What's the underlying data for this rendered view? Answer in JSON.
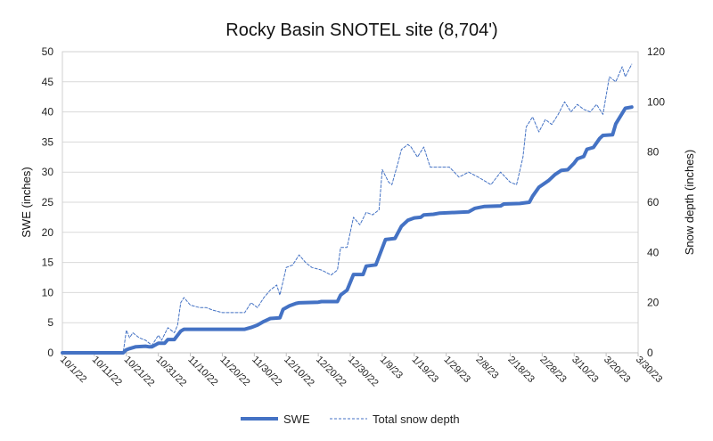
{
  "chart_data": {
    "type": "line",
    "title": "Rocky Basin SNOTEL site (8,704')",
    "ylabel_left": "SWE (inches)",
    "ylabel_right": "Snow depth (inches)",
    "ylim_left": [
      0,
      50
    ],
    "yticks_left": [
      "0",
      "5",
      "10",
      "15",
      "20",
      "25",
      "30",
      "35",
      "40",
      "45",
      "50"
    ],
    "ylim_right": [
      0,
      120
    ],
    "yticks_right": [
      "0",
      "20",
      "40",
      "60",
      "80",
      "100",
      "120"
    ],
    "x_range": [
      "2022-10-01",
      "2023-03-30"
    ],
    "x_ticks": [
      {
        "date": "2022-10-01",
        "label": "10/1/22"
      },
      {
        "date": "2022-10-11",
        "label": "10/11/22"
      },
      {
        "date": "2022-10-21",
        "label": "10/21/22"
      },
      {
        "date": "2022-10-31",
        "label": "10/31/22"
      },
      {
        "date": "2022-11-10",
        "label": "11/10/22"
      },
      {
        "date": "2022-11-20",
        "label": "11/20/22"
      },
      {
        "date": "2022-11-30",
        "label": "11/30/22"
      },
      {
        "date": "2022-12-10",
        "label": "12/10/22"
      },
      {
        "date": "2022-12-20",
        "label": "12/20/22"
      },
      {
        "date": "2022-12-30",
        "label": "12/30/22"
      },
      {
        "date": "2023-01-09",
        "label": "1/9/23"
      },
      {
        "date": "2023-01-19",
        "label": "1/19/23"
      },
      {
        "date": "2023-01-29",
        "label": "1/29/23"
      },
      {
        "date": "2023-02-08",
        "label": "2/8/23"
      },
      {
        "date": "2023-02-18",
        "label": "2/18/23"
      },
      {
        "date": "2023-02-28",
        "label": "2/28/23"
      },
      {
        "date": "2023-03-10",
        "label": "3/10/23"
      },
      {
        "date": "2023-03-20",
        "label": "3/20/23"
      },
      {
        "date": "2023-03-30",
        "label": "3/30/23"
      }
    ],
    "grid": "horizontal",
    "legend_position": "bottom",
    "series": [
      {
        "name": "SWE",
        "axis": "left",
        "color": "#4472C4",
        "style": "solid",
        "points": [
          [
            "2022-10-01",
            0
          ],
          [
            "2022-10-20",
            0
          ],
          [
            "2022-10-21",
            0.5
          ],
          [
            "2022-10-22",
            0.7
          ],
          [
            "2022-10-24",
            1.0
          ],
          [
            "2022-10-27",
            1.1
          ],
          [
            "2022-10-28",
            1.0
          ],
          [
            "2022-10-29",
            1.0
          ],
          [
            "2022-10-31",
            1.6
          ],
          [
            "2022-11-02",
            1.6
          ],
          [
            "2022-11-03",
            2.2
          ],
          [
            "2022-11-05",
            2.2
          ],
          [
            "2022-11-07",
            3.6
          ],
          [
            "2022-11-08",
            3.9
          ],
          [
            "2022-11-27",
            3.9
          ],
          [
            "2022-11-29",
            4.2
          ],
          [
            "2022-12-01",
            4.6
          ],
          [
            "2022-12-03",
            5.2
          ],
          [
            "2022-12-05",
            5.7
          ],
          [
            "2022-12-08",
            5.8
          ],
          [
            "2022-12-09",
            7.2
          ],
          [
            "2022-12-11",
            7.8
          ],
          [
            "2022-12-13",
            8.2
          ],
          [
            "2022-12-14",
            8.3
          ],
          [
            "2022-12-20",
            8.4
          ],
          [
            "2022-12-21",
            8.5
          ],
          [
            "2022-12-26",
            8.5
          ],
          [
            "2022-12-27",
            9.6
          ],
          [
            "2022-12-29",
            10.4
          ],
          [
            "2022-12-31",
            13.0
          ],
          [
            "2023-01-03",
            13.0
          ],
          [
            "2023-01-04",
            14.4
          ],
          [
            "2023-01-07",
            14.6
          ],
          [
            "2023-01-10",
            18.8
          ],
          [
            "2023-01-13",
            19.0
          ],
          [
            "2023-01-15",
            21.0
          ],
          [
            "2023-01-17",
            22.0
          ],
          [
            "2023-01-19",
            22.4
          ],
          [
            "2023-01-21",
            22.5
          ],
          [
            "2023-01-22",
            22.9
          ],
          [
            "2023-01-25",
            23.0
          ],
          [
            "2023-01-27",
            23.2
          ],
          [
            "2023-02-05",
            23.4
          ],
          [
            "2023-02-07",
            24.0
          ],
          [
            "2023-02-10",
            24.3
          ],
          [
            "2023-02-15",
            24.4
          ],
          [
            "2023-02-16",
            24.7
          ],
          [
            "2023-02-21",
            24.8
          ],
          [
            "2023-02-24",
            25.0
          ],
          [
            "2023-02-25",
            26.0
          ],
          [
            "2023-02-27",
            27.5
          ],
          [
            "2023-03-02",
            28.6
          ],
          [
            "2023-03-04",
            29.6
          ],
          [
            "2023-03-06",
            30.3
          ],
          [
            "2023-03-08",
            30.4
          ],
          [
            "2023-03-10",
            31.5
          ],
          [
            "2023-03-11",
            32.2
          ],
          [
            "2023-03-13",
            32.6
          ],
          [
            "2023-03-14",
            33.8
          ],
          [
            "2023-03-16",
            34.1
          ],
          [
            "2023-03-18",
            35.6
          ],
          [
            "2023-03-19",
            36.1
          ],
          [
            "2023-03-22",
            36.2
          ],
          [
            "2023-03-23",
            38.0
          ],
          [
            "2023-03-26",
            40.6
          ],
          [
            "2023-03-28",
            40.8
          ]
        ]
      },
      {
        "name": "Total snow depth",
        "axis": "right",
        "color": "#4472C4",
        "style": "dashed",
        "points": [
          [
            "2022-10-01",
            0
          ],
          [
            "2022-10-20",
            0
          ],
          [
            "2022-10-21",
            9
          ],
          [
            "2022-10-22",
            6
          ],
          [
            "2022-10-23",
            8
          ],
          [
            "2022-10-25",
            6
          ],
          [
            "2022-10-27",
            5
          ],
          [
            "2022-10-29",
            3
          ],
          [
            "2022-10-31",
            7
          ],
          [
            "2022-11-01",
            5
          ],
          [
            "2022-11-03",
            10
          ],
          [
            "2022-11-05",
            8
          ],
          [
            "2022-11-06",
            11
          ],
          [
            "2022-11-07",
            20
          ],
          [
            "2022-11-08",
            22
          ],
          [
            "2022-11-10",
            19
          ],
          [
            "2022-11-13",
            18
          ],
          [
            "2022-11-15",
            18
          ],
          [
            "2022-11-17",
            17
          ],
          [
            "2022-11-20",
            16
          ],
          [
            "2022-11-27",
            16
          ],
          [
            "2022-11-29",
            20
          ],
          [
            "2022-12-01",
            18
          ],
          [
            "2022-12-03",
            22
          ],
          [
            "2022-12-05",
            25
          ],
          [
            "2022-12-07",
            27
          ],
          [
            "2022-12-08",
            23
          ],
          [
            "2022-12-10",
            34
          ],
          [
            "2022-12-12",
            35
          ],
          [
            "2022-12-14",
            39
          ],
          [
            "2022-12-16",
            36
          ],
          [
            "2022-12-18",
            34
          ],
          [
            "2022-12-21",
            33
          ],
          [
            "2022-12-24",
            31
          ],
          [
            "2022-12-26",
            33
          ],
          [
            "2022-12-27",
            42
          ],
          [
            "2022-12-29",
            42
          ],
          [
            "2022-12-31",
            54
          ],
          [
            "2023-01-02",
            51
          ],
          [
            "2023-01-04",
            56
          ],
          [
            "2023-01-06",
            55
          ],
          [
            "2023-01-08",
            57
          ],
          [
            "2023-01-09",
            73
          ],
          [
            "2023-01-11",
            68
          ],
          [
            "2023-01-12",
            67
          ],
          [
            "2023-01-14",
            76
          ],
          [
            "2023-01-15",
            81
          ],
          [
            "2023-01-17",
            83
          ],
          [
            "2023-01-18",
            82
          ],
          [
            "2023-01-20",
            78
          ],
          [
            "2023-01-22",
            82
          ],
          [
            "2023-01-24",
            74
          ],
          [
            "2023-01-30",
            74
          ],
          [
            "2023-02-02",
            70
          ],
          [
            "2023-02-05",
            72
          ],
          [
            "2023-02-08",
            70
          ],
          [
            "2023-02-12",
            67
          ],
          [
            "2023-02-15",
            72
          ],
          [
            "2023-02-18",
            68
          ],
          [
            "2023-02-20",
            67
          ],
          [
            "2023-02-22",
            78
          ],
          [
            "2023-02-23",
            90
          ],
          [
            "2023-02-25",
            94
          ],
          [
            "2023-02-27",
            88
          ],
          [
            "2023-03-01",
            93
          ],
          [
            "2023-03-03",
            91
          ],
          [
            "2023-03-05",
            95
          ],
          [
            "2023-03-07",
            100
          ],
          [
            "2023-03-09",
            96
          ],
          [
            "2023-03-11",
            99
          ],
          [
            "2023-03-13",
            97
          ],
          [
            "2023-03-15",
            96
          ],
          [
            "2023-03-17",
            99
          ],
          [
            "2023-03-19",
            95
          ],
          [
            "2023-03-21",
            110
          ],
          [
            "2023-03-23",
            108
          ],
          [
            "2023-03-25",
            114
          ],
          [
            "2023-03-26",
            110
          ],
          [
            "2023-03-28",
            115
          ]
        ]
      }
    ]
  }
}
